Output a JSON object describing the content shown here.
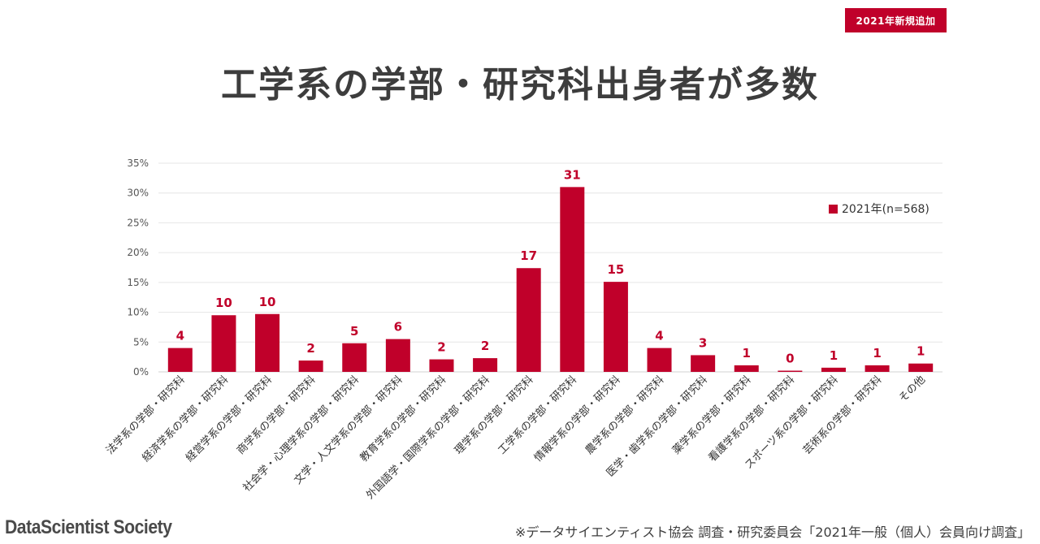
{
  "badge": "2021年新規追加",
  "title": "工学系の学部・研究科出身者が多数",
  "footer": {
    "logo": "DataScientist Society",
    "source": "※データサイエンティスト協会 調査・研究委員会「2021年一般（個人）会員向け調査」"
  },
  "colors": {
    "bar": "#c0002a",
    "label": "#c0002a",
    "grid": "#e6e6e6",
    "axis_text": "#555555"
  },
  "chart_data": {
    "type": "bar",
    "title": "",
    "xlabel": "",
    "ylabel": "",
    "ylim": [
      0,
      35
    ],
    "yticks": [
      "0%",
      "5%",
      "10%",
      "15%",
      "20%",
      "25%",
      "30%",
      "35%"
    ],
    "ytick_values": [
      0,
      5,
      10,
      15,
      20,
      25,
      30,
      35
    ],
    "legend": "2021年(n=568)",
    "legend_position": "top-right",
    "categories": [
      "法学系の学部・研究科",
      "経済学系の学部・研究科",
      "経営学系の学部・研究科",
      "商学系の学部・研究科",
      "社会学・心理学系の学部・研究科",
      "文学・人文学系の学部・研究科",
      "教育学系の学部・研究科",
      "外国語学・国際学系の学部・研究科",
      "理学系の学部・研究科",
      "工学系の学部・研究科",
      "情報学系の学部・研究科",
      "農学系の学部・研究科",
      "医学・歯学系の学部・研究科",
      "薬学系の学部・研究科",
      "看護学系の学部・研究科",
      "スポーツ系の学部・研究科",
      "芸術系の学部・研究科",
      "その他"
    ],
    "values": [
      4.0,
      9.5,
      9.7,
      1.9,
      4.8,
      5.5,
      2.1,
      2.3,
      17.4,
      31.0,
      15.1,
      4.0,
      2.8,
      1.1,
      0.2,
      0.7,
      1.1,
      1.4
    ],
    "data_labels": [
      "4",
      "10",
      "10",
      "2",
      "5",
      "6",
      "2",
      "2",
      "17",
      "31",
      "15",
      "4",
      "3",
      "1",
      "0",
      "1",
      "1",
      "1"
    ]
  }
}
